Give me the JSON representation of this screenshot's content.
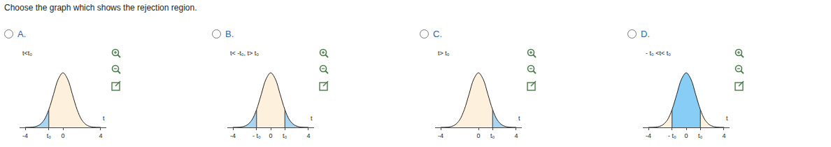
{
  "question": "Choose the graph which shows the rejection region.",
  "chart_data": [
    {
      "type": "area",
      "title": "A.",
      "annotations": [
        "t<t₀"
      ],
      "xlabel": "t",
      "x": [
        -4,
        -3.5,
        -3,
        -2.5,
        -2,
        -1.5,
        -1,
        -0.5,
        0,
        0.5,
        1,
        1.5,
        2,
        2.5,
        3,
        3.5,
        4
      ],
      "values": [
        0.0001,
        0.0009,
        0.0044,
        0.018,
        0.054,
        0.13,
        0.242,
        0.352,
        0.399,
        0.352,
        0.242,
        0.13,
        0.054,
        0.018,
        0.0044,
        0.0009,
        0.0001
      ],
      "shaded": [
        [
          -4,
          -1.5
        ]
      ],
      "colors": [
        "#fdf0dc",
        "#a9d5f0"
      ],
      "xlim": [
        -4.6,
        4.6
      ],
      "xticks": [
        -4,
        {
          "value": -1.5,
          "label": "t₀"
        },
        0,
        4
      ],
      "ylim": [
        0,
        0.45
      ],
      "tick_labels": "x"
    },
    {
      "type": "area",
      "title": "B.",
      "annotations": [
        "t< -t₀, t> t₀"
      ],
      "xlabel": "t",
      "x": [
        -4,
        -3.5,
        -3,
        -2.5,
        -2,
        -1.5,
        -1,
        -0.5,
        0,
        0.5,
        1,
        1.5,
        2,
        2.5,
        3,
        3.5,
        4
      ],
      "values": [
        0.0001,
        0.0009,
        0.0044,
        0.018,
        0.054,
        0.13,
        0.242,
        0.352,
        0.399,
        0.352,
        0.242,
        0.13,
        0.054,
        0.018,
        0.0044,
        0.0009,
        0.0001
      ],
      "shaded": [
        [
          -4,
          -1.5
        ],
        [
          1.5,
          4
        ]
      ],
      "colors": [
        "#fdf0dc",
        "#a9d5f0"
      ],
      "xlim": [
        -4.6,
        4.6
      ],
      "xticks": [
        -4,
        {
          "value": -1.5,
          "label": "- t₀"
        },
        0,
        {
          "value": 1.5,
          "label": "t₀"
        },
        4
      ],
      "ylim": [
        0,
        0.45
      ],
      "tick_labels": "x"
    },
    {
      "type": "area",
      "title": "C.",
      "annotations": [
        "t> t₀"
      ],
      "xlabel": "t",
      "x": [
        -4,
        -3.5,
        -3,
        -2.5,
        -2,
        -1.5,
        -1,
        -0.5,
        0,
        0.5,
        1,
        1.5,
        2,
        2.5,
        3,
        3.5,
        4
      ],
      "values": [
        0.0001,
        0.0009,
        0.0044,
        0.018,
        0.054,
        0.13,
        0.242,
        0.352,
        0.399,
        0.352,
        0.242,
        0.13,
        0.054,
        0.018,
        0.0044,
        0.0009,
        0.0001
      ],
      "shaded": [
        [
          1.5,
          4
        ]
      ],
      "colors": [
        "#fdf0dc",
        "#a9d5f0"
      ],
      "xlim": [
        -4.6,
        4.6
      ],
      "xticks": [
        -4,
        0,
        {
          "value": 1.5,
          "label": "t₀"
        },
        4
      ],
      "ylim": [
        0,
        0.45
      ],
      "tick_labels": "x"
    },
    {
      "type": "area",
      "title": "D.",
      "annotations": [
        "- t₀ <t< t₀"
      ],
      "xlabel": "t",
      "x": [
        -4,
        -3.5,
        -3,
        -2.5,
        -2,
        -1.5,
        -1,
        -0.5,
        0,
        0.5,
        1,
        1.5,
        2,
        2.5,
        3,
        3.5,
        4
      ],
      "values": [
        0.0001,
        0.0009,
        0.0044,
        0.018,
        0.054,
        0.13,
        0.242,
        0.352,
        0.399,
        0.352,
        0.242,
        0.13,
        0.054,
        0.018,
        0.0044,
        0.0009,
        0.0001
      ],
      "shaded": [
        [
          -1.5,
          1.5
        ]
      ],
      "colors": [
        "#fdf0dc",
        "#87cdf5"
      ],
      "xlim": [
        -4.6,
        4.6
      ],
      "xticks": [
        -4,
        {
          "value": -1.5,
          "label": "- t₀"
        },
        0,
        {
          "value": 1.5,
          "label": "t₀"
        },
        4
      ],
      "ylim": [
        0,
        0.45
      ],
      "tick_labels": "x"
    }
  ]
}
